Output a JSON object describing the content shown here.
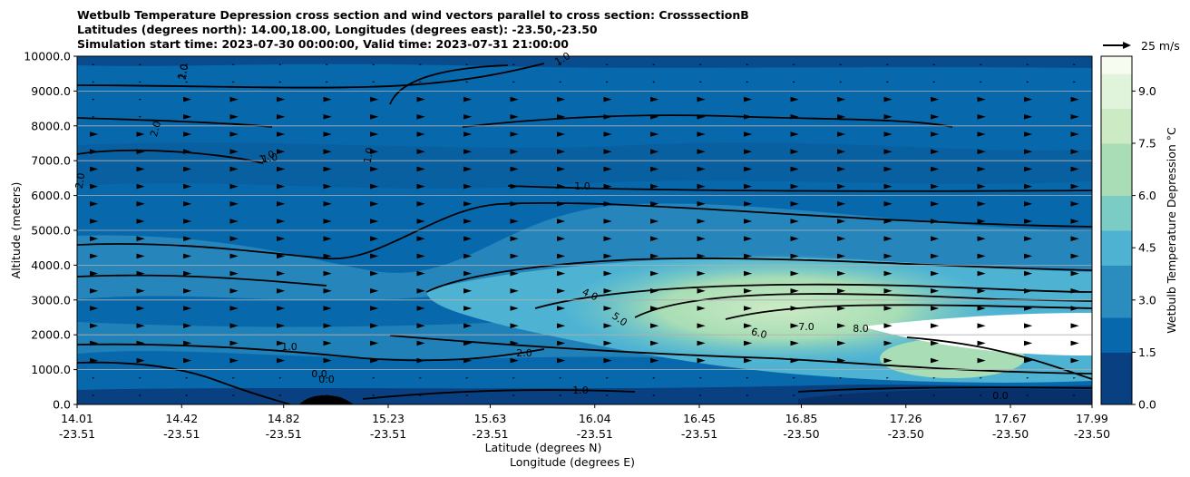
{
  "chart_data": {
    "type": "heatmap",
    "title_lines": [
      "Wetbulb Temperature Depression cross section and wind vectors parallel to cross section: CrosssectionB",
      "Latitudes (degrees north): 14.00,18.00, Longitudes (degrees east): -23.50,-23.50",
      "Simulation start time: 2023-07-30 00:00:00, Valid time: 2023-07-31 21:00:00"
    ],
    "ylabel": "Altitude (meters)",
    "xlabel_lat": "Latitude (degrees N)",
    "xlabel_lon": "Longitude (degrees E)",
    "ylim": [
      0,
      10000
    ],
    "yticks": [
      "0.0",
      "1000.0",
      "2000.0",
      "3000.0",
      "4000.0",
      "5000.0",
      "6000.0",
      "7000.0",
      "8000.0",
      "9000.0",
      "10000.0"
    ],
    "xticks_lat": [
      "14.01",
      "14.42",
      "14.82",
      "15.23",
      "15.63",
      "16.04",
      "16.45",
      "16.85",
      "17.26",
      "17.67",
      "17.99"
    ],
    "xticks_lon": [
      "-23.51",
      "-23.51",
      "-23.51",
      "-23.51",
      "-23.51",
      "-23.51",
      "-23.51",
      "-23.50",
      "-23.50",
      "-23.50",
      "-23.50"
    ],
    "colorbar": {
      "label": "Wetbulb Temperature Depression °C",
      "range": [
        0,
        10
      ],
      "tick_labels": [
        "0.0",
        "1.5",
        "3.0",
        "4.5",
        "6.0",
        "7.5",
        "9.0"
      ],
      "tick_values": [
        0,
        1.5,
        3.0,
        4.5,
        6.0,
        7.5,
        9.0
      ],
      "colors": [
        "#084081",
        "#0868ac",
        "#2b8cbe",
        "#4eb3d3",
        "#7bccc4",
        "#a8ddb5",
        "#ccebc5",
        "#e0f3db",
        "#f7fcf0"
      ]
    },
    "wind_reference_label": "25 m/s",
    "contour_labels": [
      "1.0",
      "2.0",
      "4.0",
      "5.0",
      "6.0",
      "7.0",
      "8.0",
      "0.0"
    ],
    "grid": "horizontal",
    "legend": "top-right"
  }
}
